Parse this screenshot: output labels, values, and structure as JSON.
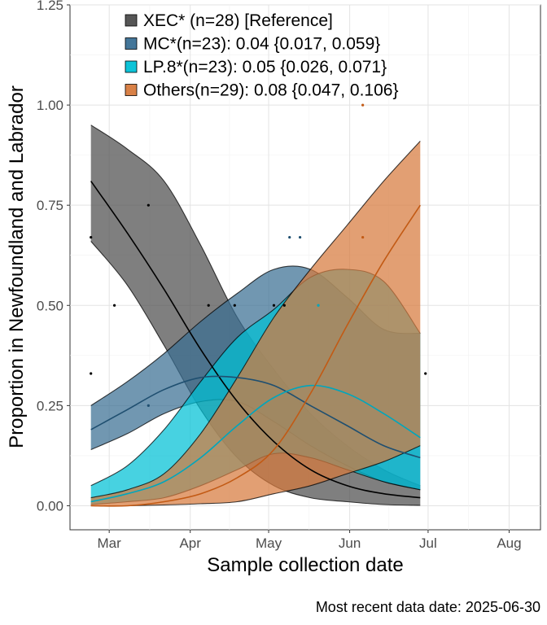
{
  "chart_data": {
    "type": "area",
    "xlabel": "Sample collection date",
    "ylabel": "Proportion in Newfoundland and Labrador",
    "caption": "Most recent data date: 2025-06-30",
    "xlim": [
      "2025-02-14",
      "2025-08-13"
    ],
    "ylim": [
      -0.06,
      1.25
    ],
    "grid": true,
    "legend_position": "top-left",
    "x_ticks": [
      {
        "date": "2025-03-01",
        "label": "Mar"
      },
      {
        "date": "2025-04-01",
        "label": "Apr"
      },
      {
        "date": "2025-05-01",
        "label": "May"
      },
      {
        "date": "2025-06-01",
        "label": "Jun"
      },
      {
        "date": "2025-07-01",
        "label": "Jul"
      },
      {
        "date": "2025-08-01",
        "label": "Aug"
      }
    ],
    "y_ticks": [
      0,
      0.25,
      0.5,
      0.75,
      1.0,
      1.25
    ],
    "y_tick_labels": [
      "0.00",
      "0.25",
      "0.50",
      "0.75",
      "1.00",
      "1.25"
    ],
    "x": [
      "2025-02-22",
      "2025-03-08",
      "2025-03-22",
      "2025-04-05",
      "2025-04-19",
      "2025-05-03",
      "2025-05-17",
      "2025-05-31",
      "2025-06-14",
      "2025-06-28"
    ],
    "series": [
      {
        "name": "XEC* (n=28)  [Reference]",
        "legend": "XEC* (n=28)  [Reference]",
        "color": "#4d4d4d",
        "line_color": "#000000",
        "fit": [
          0.81,
          0.68,
          0.54,
          0.39,
          0.26,
          0.16,
          0.09,
          0.05,
          0.03,
          0.02
        ],
        "lower": [
          0.66,
          0.55,
          0.4,
          0.24,
          0.12,
          0.05,
          0.02,
          0.01,
          0.003,
          0.001
        ],
        "upper": [
          0.95,
          0.89,
          0.81,
          0.65,
          0.47,
          0.34,
          0.23,
          0.15,
          0.09,
          0.05
        ],
        "observations": [
          {
            "x": "2025-02-22",
            "y": 0.67
          },
          {
            "x": "2025-02-22",
            "y": 0.33
          },
          {
            "x": "2025-03-03",
            "y": 0.5
          },
          {
            "x": "2025-03-16",
            "y": 0.75
          },
          {
            "x": "2025-04-08",
            "y": 0.5
          },
          {
            "x": "2025-04-18",
            "y": 0.5
          },
          {
            "x": "2025-05-03",
            "y": 0.5
          },
          {
            "x": "2025-05-07",
            "y": 0.5
          },
          {
            "x": "2025-06-30",
            "y": 0.33
          }
        ]
      },
      {
        "name": "MC*(n=23): 0.04 {0.017, 0.059}",
        "legend": "MC*(n=23): 0.04 {0.017, 0.059}",
        "color": "#3a6f93",
        "line_color": "#1f4f70",
        "fit": [
          0.19,
          0.24,
          0.29,
          0.32,
          0.32,
          0.3,
          0.25,
          0.2,
          0.15,
          0.12
        ],
        "lower": [
          0.14,
          0.18,
          0.23,
          0.26,
          0.26,
          0.21,
          0.15,
          0.1,
          0.06,
          0.04
        ],
        "upper": [
          0.25,
          0.31,
          0.38,
          0.46,
          0.53,
          0.59,
          0.59,
          0.52,
          0.44,
          0.43
        ],
        "observations": [
          {
            "x": "2025-03-16",
            "y": 0.25
          },
          {
            "x": "2025-05-09",
            "y": 0.67
          },
          {
            "x": "2025-05-13",
            "y": 0.67
          }
        ]
      },
      {
        "name": "LP.8*(n=23): 0.05 {0.026, 0.071}",
        "legend": "LP.8*(n=23): 0.05 {0.026, 0.071}",
        "color": "#00c0d6",
        "line_color": "#00a6bd",
        "fit": [
          0.01,
          0.03,
          0.06,
          0.12,
          0.2,
          0.27,
          0.3,
          0.28,
          0.23,
          0.17
        ],
        "lower": [
          0.003,
          0.01,
          0.02,
          0.05,
          0.09,
          0.13,
          0.12,
          0.09,
          0.06,
          0.04
        ],
        "upper": [
          0.05,
          0.1,
          0.19,
          0.31,
          0.42,
          0.49,
          0.57,
          0.59,
          0.56,
          0.43
        ],
        "observations": [
          {
            "x": "2025-05-20",
            "y": 0.5
          }
        ]
      },
      {
        "name": "Others(n=29): 0.08 {0.047, 0.106}",
        "legend": "Others(n=29): 0.08 {0.047, 0.106}",
        "color": "#d77a3d",
        "line_color": "#c25a14",
        "fit": [
          0.0,
          0.0,
          0.01,
          0.03,
          0.07,
          0.14,
          0.28,
          0.45,
          0.61,
          0.75
        ],
        "lower": [
          0.0,
          0.0,
          0.002,
          0.005,
          0.01,
          0.03,
          0.05,
          0.08,
          0.11,
          0.15
        ],
        "upper": [
          0.02,
          0.04,
          0.08,
          0.18,
          0.32,
          0.47,
          0.59,
          0.7,
          0.81,
          0.91
        ],
        "observations": [
          {
            "x": "2025-06-06",
            "y": 0.67
          },
          {
            "x": "2025-06-06",
            "y": 1.0
          }
        ]
      }
    ]
  }
}
